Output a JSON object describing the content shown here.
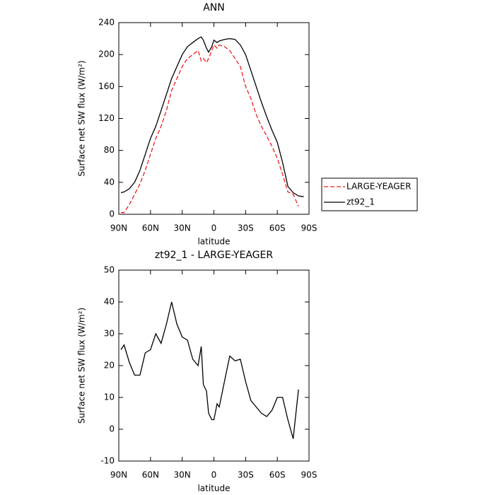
{
  "chart_data": [
    {
      "type": "line",
      "title": "ANN",
      "xlabel": "latitude",
      "ylabel": "Surface net SW flux (W/m²)",
      "x": [
        88,
        85,
        80,
        75,
        70,
        65,
        60,
        55,
        50,
        45,
        40,
        35,
        30,
        25,
        20,
        15,
        12,
        10,
        7,
        5,
        2,
        0,
        -3,
        -5,
        -10,
        -15,
        -20,
        -25,
        -30,
        -35,
        -40,
        -45,
        -50,
        -55,
        -60,
        -65,
        -70,
        -75,
        -80,
        -85
      ],
      "series": [
        {
          "name": "LARGE-YEAGER",
          "color": "#e8201e",
          "linestyle": "dashed",
          "values": [
            2,
            2,
            12,
            25,
            38,
            55,
            75,
            95,
            110,
            130,
            155,
            170,
            185,
            195,
            200,
            205,
            192,
            195,
            190,
            195,
            205,
            212,
            208,
            212,
            210,
            205,
            195,
            185,
            160,
            145,
            125,
            110,
            98,
            85,
            70,
            50,
            28,
            25,
            10,
            null
          ]
        },
        {
          "name": "zt92_1",
          "color": "#000000",
          "linestyle": "solid",
          "values": [
            27,
            28,
            32,
            40,
            55,
            75,
            95,
            110,
            130,
            150,
            170,
            185,
            200,
            210,
            215,
            220,
            222,
            218,
            208,
            203,
            210,
            218,
            215,
            217,
            219,
            220,
            219,
            212,
            200,
            180,
            160,
            140,
            122,
            105,
            90,
            65,
            35,
            27,
            23,
            22
          ]
        }
      ],
      "xlim": [
        90,
        -90
      ],
      "xticks": [
        {
          "value": 90,
          "label": "90N"
        },
        {
          "value": 60,
          "label": "60N"
        },
        {
          "value": 30,
          "label": "30N"
        },
        0,
        {
          "value": -30,
          "label": "30S"
        },
        {
          "value": -60,
          "label": "60S"
        },
        {
          "value": -90,
          "label": "90S"
        }
      ],
      "ylim": [
        0,
        240
      ],
      "yticks": [
        0,
        40,
        80,
        120,
        160,
        200,
        240
      ],
      "legend": "right"
    },
    {
      "type": "line",
      "title": "zt92_1 - LARGE-YEAGER",
      "xlabel": "latitude",
      "ylabel": "Surface net SW flux (W/m²)",
      "x": [
        88,
        85,
        80,
        75,
        70,
        65,
        60,
        55,
        50,
        45,
        40,
        35,
        30,
        25,
        20,
        15,
        12,
        10,
        7,
        5,
        2,
        0,
        -3,
        -5,
        -10,
        -15,
        -20,
        -25,
        -30,
        -35,
        -40,
        -45,
        -50,
        -55,
        -60,
        -65,
        -70,
        -75,
        -80
      ],
      "values": [
        25,
        26.5,
        21,
        17,
        17,
        24,
        25,
        30,
        27,
        33,
        40,
        33,
        29,
        28,
        22,
        20,
        26,
        14,
        12,
        5,
        3,
        3,
        8,
        7,
        15,
        23,
        21.5,
        22,
        15,
        9,
        7,
        5,
        4,
        6,
        10,
        10,
        3,
        -3,
        12.5
      ],
      "color": "#000000",
      "xlim": [
        90,
        -90
      ],
      "xticks": [
        {
          "value": 90,
          "label": "90N"
        },
        {
          "value": 60,
          "label": "60N"
        },
        {
          "value": 30,
          "label": "30N"
        },
        0,
        {
          "value": -30,
          "label": "30S"
        },
        {
          "value": -60,
          "label": "60S"
        },
        {
          "value": -90,
          "label": "90S"
        }
      ],
      "ylim": [
        -10,
        50
      ],
      "yticks": [
        -10,
        0,
        10,
        20,
        30,
        40,
        50
      ]
    }
  ]
}
